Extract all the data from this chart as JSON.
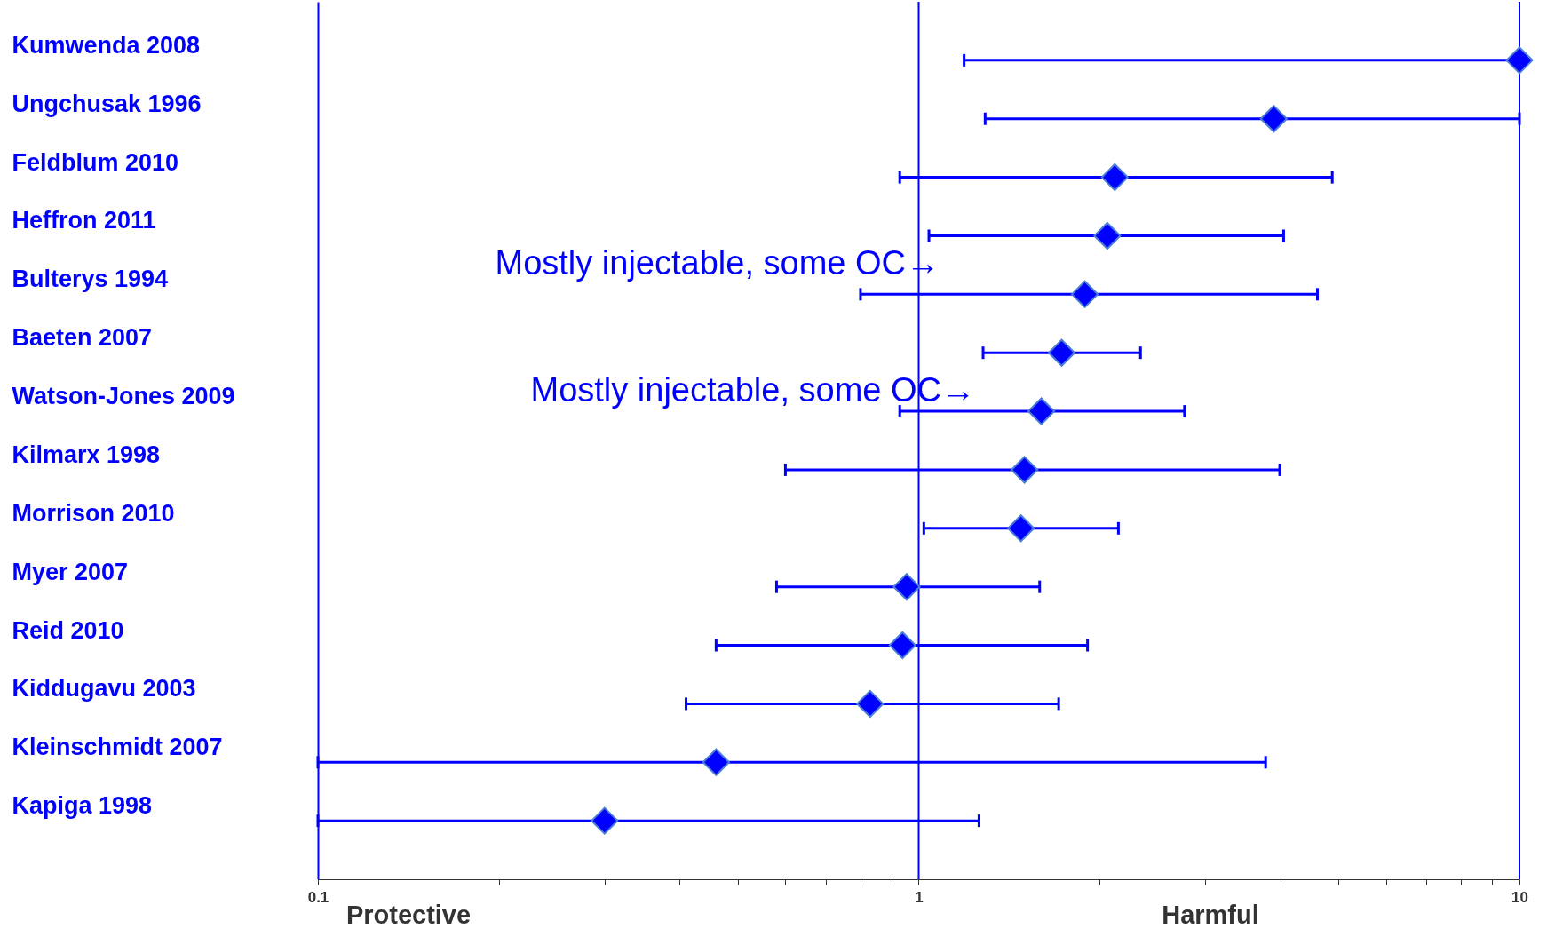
{
  "chart_data": {
    "type": "scatter",
    "orientation": "horizontal",
    "log": "x",
    "marker": "diamond",
    "grid": false,
    "categories": [
      "Kumwenda 2008",
      "Ungchusak 1996",
      "Feldblum 2010",
      "Heffron 2011",
      "Bulterys 1994",
      "Baeten 2007",
      "Watson-Jones 2009",
      "Kilmarx 1998",
      "Morrison 2010",
      "Myer 2007",
      "Reid 2010",
      "Kiddugavu 2003",
      "Kleinschmidt 2007",
      "Kapiga 1998"
    ],
    "series": [
      {
        "color": "#0000ff",
        "values": [
          10,
          3.9,
          2.12,
          2.06,
          1.89,
          1.73,
          1.6,
          1.5,
          1.48,
          0.955,
          0.94,
          0.83,
          0.46,
          0.3
        ],
        "errors": [
          [
            1.19,
            10
          ],
          [
            1.29,
            10
          ],
          [
            0.93,
            4.88
          ],
          [
            1.04,
            4.05
          ],
          [
            0.8,
            4.61
          ],
          [
            1.28,
            2.34
          ],
          [
            0.93,
            2.77
          ],
          [
            0.6,
            3.99
          ],
          [
            1.02,
            2.15
          ],
          [
            0.58,
            1.59
          ],
          [
            0.46,
            1.91
          ],
          [
            0.41,
            1.71
          ],
          [
            0.1,
            3.78
          ],
          [
            0.1,
            1.26
          ]
        ]
      }
    ],
    "xlim": [
      0.1,
      10
    ],
    "xticks": [
      0.1,
      {
        "value": 0.2,
        "label": null
      },
      {
        "value": 0.3,
        "label": null
      },
      {
        "value": 0.4,
        "label": null
      },
      {
        "value": 0.5,
        "label": null
      },
      {
        "value": 0.6,
        "label": null
      },
      {
        "value": 0.7,
        "label": null
      },
      {
        "value": 0.8,
        "label": null
      },
      {
        "value": 0.9,
        "label": null
      },
      1,
      {
        "value": 2,
        "label": null
      },
      {
        "value": 3,
        "label": null
      },
      {
        "value": 4,
        "label": null
      },
      {
        "value": 5,
        "label": null
      },
      {
        "value": 6,
        "label": null
      },
      {
        "value": 7,
        "label": null
      },
      {
        "value": 8,
        "label": null
      },
      {
        "value": 9,
        "label": null
      },
      10
    ],
    "ref_lines": [
      {
        "axis": "x",
        "value": 1,
        "color": "#0000ff"
      },
      {
        "axis": "x",
        "value": 10,
        "color": "#0000ff"
      }
    ],
    "annotations": [
      "Mostly injectable, some OC→",
      "Mostly injectable, some OC→",
      "Protective",
      "Harmful"
    ]
  }
}
